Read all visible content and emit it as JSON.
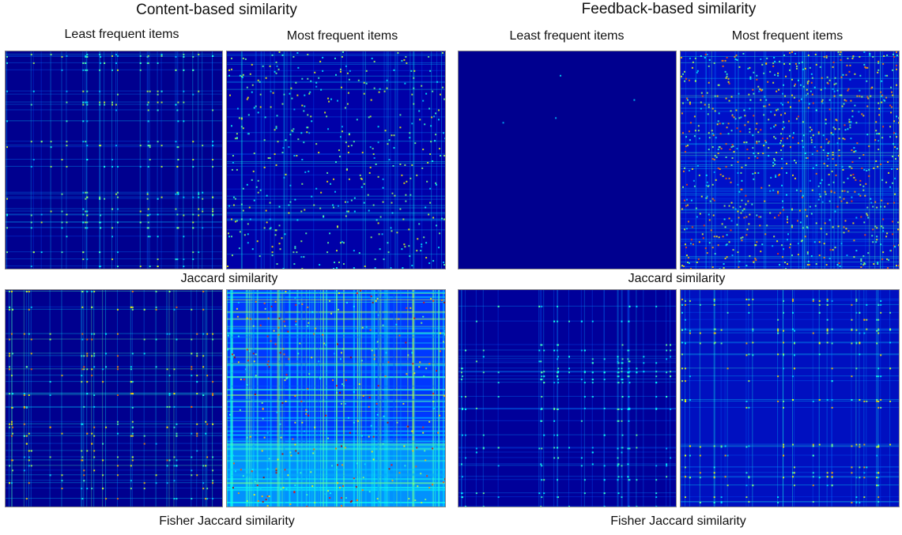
{
  "figure": {
    "groups": [
      {
        "title": "Content-based similarity",
        "columns": [
          "Least frequent items",
          "Most frequent items"
        ],
        "rows": [
          "Jaccard similarity",
          "Fisher Jaccard similarity"
        ]
      },
      {
        "title": "Feedback-based similarity",
        "columns": [
          "Least frequent items",
          "Most frequent items"
        ],
        "rows": [
          "Jaccard similarity",
          "Fisher Jaccard similarity"
        ]
      }
    ]
  },
  "chart_data": [
    {
      "type": "heatmap",
      "group": "Content-based similarity",
      "column": "Least frequent items",
      "row": "Jaccard similarity",
      "colormap": "jet",
      "background": "#00008f",
      "density": "sparse-grid",
      "intensity": 0.28
    },
    {
      "type": "heatmap",
      "group": "Content-based similarity",
      "column": "Most frequent items",
      "row": "Jaccard similarity",
      "colormap": "jet",
      "background": "#0000a8",
      "density": "noisy",
      "intensity": 0.32
    },
    {
      "type": "heatmap",
      "group": "Feedback-based similarity",
      "column": "Least frequent items",
      "row": "Jaccard similarity",
      "colormap": "jet",
      "background": "#00008f",
      "density": "near-empty",
      "intensity": 0.05
    },
    {
      "type": "heatmap",
      "group": "Feedback-based similarity",
      "column": "Most frequent items",
      "row": "Jaccard similarity",
      "colormap": "jet",
      "background": "#0010c8",
      "density": "dense-noisy",
      "intensity": 0.48
    },
    {
      "type": "heatmap",
      "group": "Content-based similarity",
      "column": "Least frequent items",
      "row": "Fisher Jaccard similarity",
      "colormap": "jet",
      "background": "#00008f",
      "density": "sparse-grid",
      "intensity": 0.45
    },
    {
      "type": "heatmap",
      "group": "Content-based similarity",
      "column": "Most frequent items",
      "row": "Fisher Jaccard similarity",
      "colormap": "jet",
      "background": "#0038ff",
      "density": "banded",
      "intensity": 0.62
    },
    {
      "type": "heatmap",
      "group": "Feedback-based similarity",
      "column": "Least frequent items",
      "row": "Fisher Jaccard similarity",
      "colormap": "jet",
      "background": "#00009a",
      "density": "sparse-grid",
      "intensity": 0.18
    },
    {
      "type": "heatmap",
      "group": "Feedback-based similarity",
      "column": "Most frequent items",
      "row": "Fisher Jaccard similarity",
      "colormap": "jet",
      "background": "#0010c0",
      "density": "grid",
      "intensity": 0.38
    }
  ]
}
